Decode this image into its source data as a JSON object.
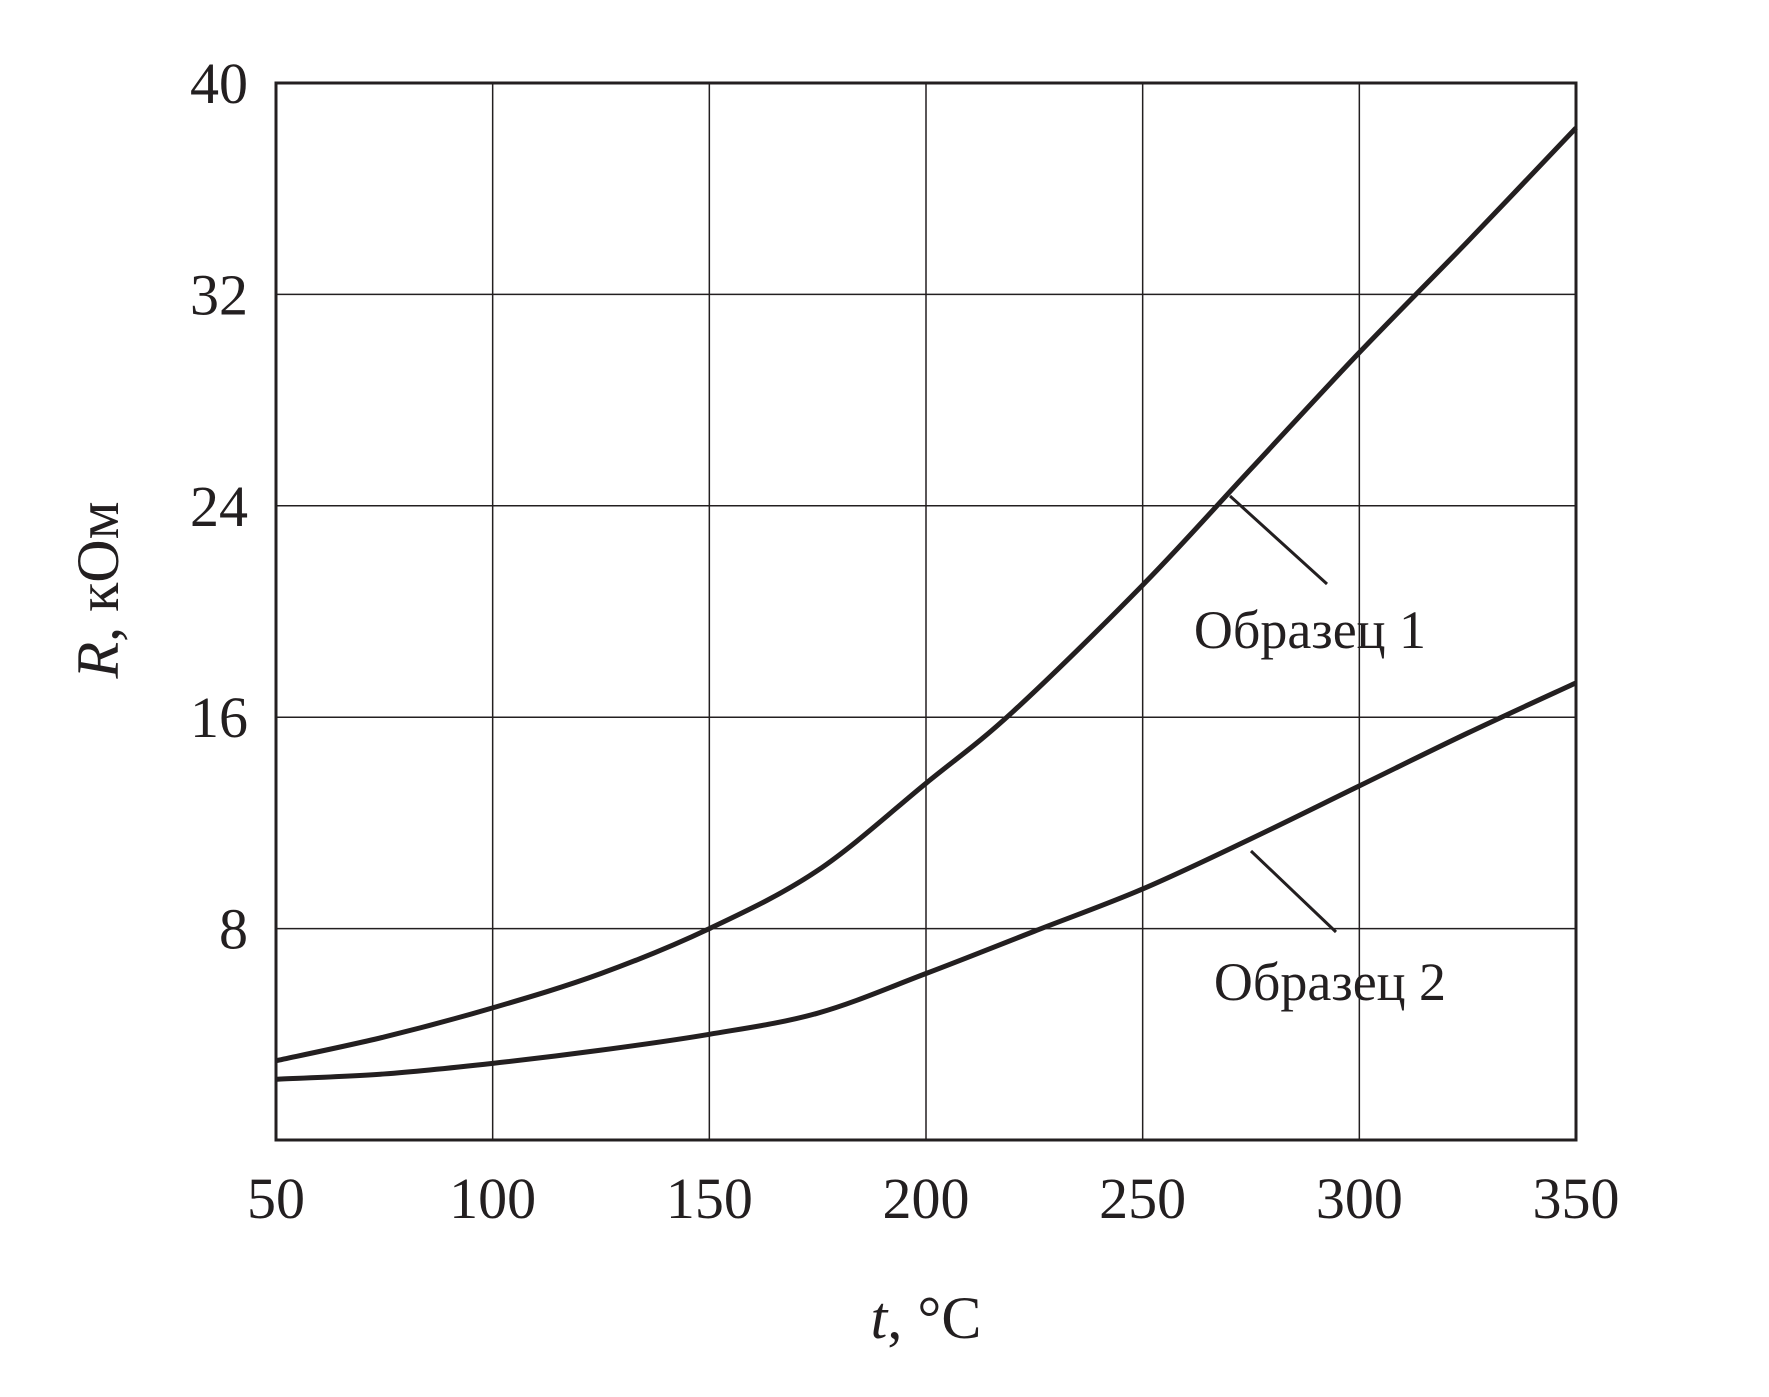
{
  "chart_data": {
    "type": "line",
    "title": "",
    "xlabel_italic": "t",
    "xlabel_rest": ", °C",
    "ylabel_italic": "R",
    "ylabel_rest": ", кОм",
    "xlim": [
      50,
      350
    ],
    "ylim": [
      0,
      40
    ],
    "xticks": [
      "50",
      "100",
      "150",
      "200",
      "250",
      "300",
      "350"
    ],
    "yticks": [
      "8",
      "16",
      "24",
      "32",
      "40"
    ],
    "grid": true,
    "series": [
      {
        "name": "Образец 1",
        "x": [
          50,
          75,
          100,
          125,
          150,
          175,
          200,
          220,
          250,
          275,
          300,
          325,
          350
        ],
        "values": [
          3.0,
          3.9,
          5.0,
          6.3,
          8.0,
          10.2,
          13.5,
          16.2,
          21.0,
          25.4,
          29.8,
          34.0,
          38.3
        ]
      },
      {
        "name": "Образец 2",
        "x": [
          50,
          75,
          100,
          125,
          150,
          175,
          200,
          225,
          250,
          275,
          300,
          325,
          350
        ],
        "values": [
          2.3,
          2.5,
          2.9,
          3.4,
          4.0,
          4.8,
          6.3,
          7.9,
          9.5,
          11.4,
          13.4,
          15.4,
          17.3
        ]
      }
    ],
    "color": "#231f20"
  }
}
